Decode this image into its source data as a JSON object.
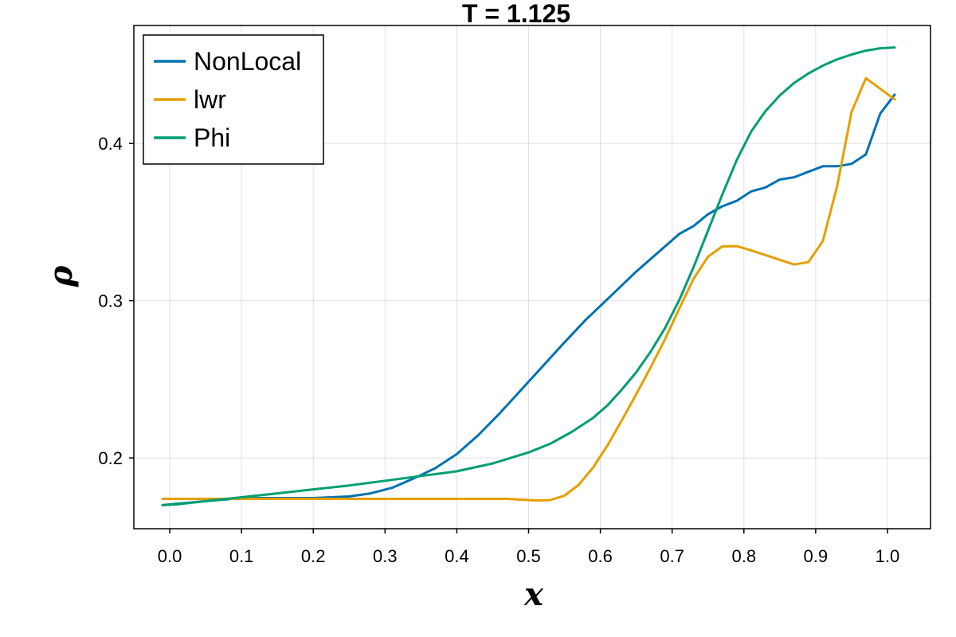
{
  "chart_data": {
    "type": "line",
    "title": "T = 1.125",
    "xlabel": "x",
    "ylabel": "ρ",
    "xlim": [
      -0.05,
      1.06
    ],
    "ylim": [
      0.155,
      0.475
    ],
    "xticks": [
      0.0,
      0.1,
      0.2,
      0.3,
      0.4,
      0.5,
      0.6,
      0.7,
      0.8,
      0.9,
      1.0
    ],
    "xtick_labels": [
      "0.0",
      "0.1",
      "0.2",
      "0.3",
      "0.4",
      "0.5",
      "0.6",
      "0.7",
      "0.8",
      "0.9",
      "1.0"
    ],
    "yticks": [
      0.2,
      0.3,
      0.4
    ],
    "ytick_labels": [
      "0.2",
      "0.3",
      "0.4"
    ],
    "grid": true,
    "legend_position": "top-left",
    "series": [
      {
        "name": "NonLocal",
        "color": "#0072b2",
        "x": [
          -0.01,
          0.05,
          0.1,
          0.15,
          0.2,
          0.25,
          0.28,
          0.31,
          0.34,
          0.37,
          0.4,
          0.43,
          0.46,
          0.49,
          0.52,
          0.55,
          0.58,
          0.61,
          0.65,
          0.69,
          0.71,
          0.73,
          0.75,
          0.77,
          0.79,
          0.81,
          0.83,
          0.85,
          0.87,
          0.89,
          0.91,
          0.93,
          0.95,
          0.97,
          0.99,
          1.01
        ],
        "values": [
          0.17,
          0.1725,
          0.1745,
          0.1745,
          0.1745,
          0.1755,
          0.1775,
          0.181,
          0.187,
          0.1935,
          0.2025,
          0.2145,
          0.2285,
          0.2435,
          0.2585,
          0.2735,
          0.288,
          0.301,
          0.3185,
          0.3345,
          0.3425,
          0.3475,
          0.355,
          0.36,
          0.3635,
          0.3695,
          0.372,
          0.377,
          0.3785,
          0.382,
          0.3855,
          0.3855,
          0.387,
          0.393,
          0.419,
          0.431
        ]
      },
      {
        "name": "lwr",
        "color": "#e69f00",
        "x": [
          -0.01,
          0.1,
          0.2,
          0.3,
          0.4,
          0.47,
          0.51,
          0.53,
          0.55,
          0.57,
          0.59,
          0.61,
          0.63,
          0.65,
          0.67,
          0.69,
          0.71,
          0.73,
          0.75,
          0.77,
          0.79,
          0.81,
          0.83,
          0.85,
          0.87,
          0.89,
          0.91,
          0.93,
          0.95,
          0.97,
          1.01
        ],
        "values": [
          0.174,
          0.174,
          0.174,
          0.174,
          0.174,
          0.174,
          0.173,
          0.1732,
          0.176,
          0.183,
          0.194,
          0.208,
          0.224,
          0.2405,
          0.2575,
          0.2755,
          0.295,
          0.314,
          0.328,
          0.3345,
          0.3347,
          0.332,
          0.329,
          0.326,
          0.323,
          0.3245,
          0.338,
          0.373,
          0.42,
          0.4415,
          0.428
        ]
      },
      {
        "name": "Phi",
        "color": "#009e73",
        "x": [
          -0.01,
          0.01,
          0.05,
          0.1,
          0.15,
          0.2,
          0.25,
          0.3,
          0.35,
          0.4,
          0.45,
          0.5,
          0.53,
          0.56,
          0.59,
          0.61,
          0.63,
          0.65,
          0.67,
          0.69,
          0.71,
          0.73,
          0.75,
          0.77,
          0.79,
          0.81,
          0.83,
          0.85,
          0.87,
          0.89,
          0.91,
          0.93,
          0.95,
          0.97,
          0.99,
          1.01
        ],
        "values": [
          0.17,
          0.1705,
          0.1725,
          0.175,
          0.1775,
          0.18,
          0.1825,
          0.1855,
          0.1885,
          0.1915,
          0.1965,
          0.2035,
          0.209,
          0.2165,
          0.2255,
          0.2335,
          0.2435,
          0.2545,
          0.2675,
          0.2825,
          0.3005,
          0.3215,
          0.3445,
          0.3675,
          0.3895,
          0.4075,
          0.4205,
          0.4305,
          0.4385,
          0.4445,
          0.4495,
          0.4535,
          0.4565,
          0.459,
          0.4605,
          0.461
        ]
      }
    ]
  }
}
